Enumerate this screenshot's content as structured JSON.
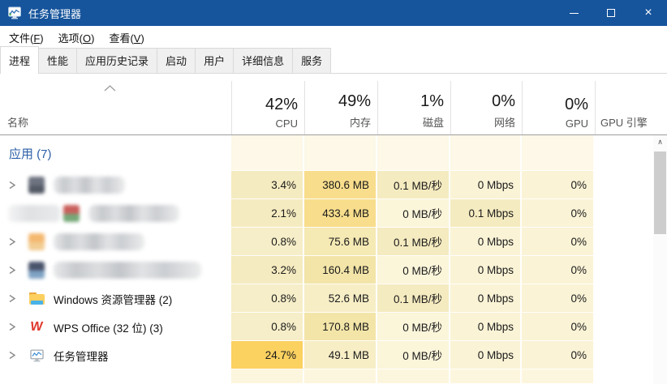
{
  "window": {
    "title": "任务管理器",
    "controls": {
      "close_glyph": "×"
    }
  },
  "menu": {
    "items": [
      {
        "pre": "文件(",
        "key": "F",
        "post": ")"
      },
      {
        "pre": "选项(",
        "key": "O",
        "post": ")"
      },
      {
        "pre": "查看(",
        "key": "V",
        "post": ")"
      }
    ]
  },
  "tabs": [
    {
      "label": "进程",
      "selected": true
    },
    {
      "label": "性能",
      "selected": false
    },
    {
      "label": "应用历史记录",
      "selected": false
    },
    {
      "label": "启动",
      "selected": false
    },
    {
      "label": "用户",
      "selected": false
    },
    {
      "label": "详细信息",
      "selected": false
    },
    {
      "label": "服务",
      "selected": false
    }
  ],
  "table": {
    "name_header": "名称",
    "columns": [
      {
        "value": "42%",
        "label": "CPU"
      },
      {
        "value": "49%",
        "label": "内存"
      },
      {
        "value": "1%",
        "label": "磁盘"
      },
      {
        "value": "0%",
        "label": "网络"
      },
      {
        "value": "0%",
        "label": "GPU"
      }
    ],
    "gpu_engine_header": "GPU 引擎",
    "group_label": "应用 (7)",
    "rows": [
      {
        "redacted": true,
        "name": "",
        "chevron": true,
        "icon": "redacted-app-icon",
        "icon_colors": [
          "#6e7380",
          "#545a66"
        ],
        "pre_blob": 0,
        "blur_width": 88,
        "cells": [
          {
            "t": "3.4%",
            "bg": "#f5ebc0"
          },
          {
            "t": "380.6 MB",
            "bg": "#f8dd8c"
          },
          {
            "t": "0.1 MB/秒",
            "bg": "#f5ebc0"
          },
          {
            "t": "0 Mbps",
            "bg": "#faf3d6"
          },
          {
            "t": "0%",
            "bg": "#faf3d6"
          }
        ]
      },
      {
        "redacted": true,
        "name": "",
        "chevron": false,
        "icon": "redacted-app-icon",
        "icon_colors": [
          "#c9605c",
          "#76a877"
        ],
        "pre_blob": 64,
        "blur_width": 112,
        "cells": [
          {
            "t": "2.1%",
            "bg": "#f5ebc0"
          },
          {
            "t": "433.4 MB",
            "bg": "#f8dd8c"
          },
          {
            "t": "0 MB/秒",
            "bg": "#fbf5da"
          },
          {
            "t": "0.1 Mbps",
            "bg": "#f5ebc0"
          },
          {
            "t": "0%",
            "bg": "#faf3d6"
          }
        ]
      },
      {
        "redacted": true,
        "name": "",
        "chevron": true,
        "icon": "redacted-app-icon",
        "icon_colors": [
          "#f4b870",
          "#f2cc92"
        ],
        "pre_blob": 0,
        "blur_width": 112,
        "cells": [
          {
            "t": "0.8%",
            "bg": "#f6eec8"
          },
          {
            "t": "75.6 MB",
            "bg": "#f5e9b4"
          },
          {
            "t": "0.1 MB/秒",
            "bg": "#f5ebc0"
          },
          {
            "t": "0 Mbps",
            "bg": "#faf3d6"
          },
          {
            "t": "0%",
            "bg": "#faf3d6"
          }
        ]
      },
      {
        "redacted": true,
        "name": "",
        "chevron": true,
        "icon": "redacted-app-icon",
        "icon_colors": [
          "#49536b",
          "#7fa3c4"
        ],
        "pre_blob": 0,
        "blur_width": 182,
        "cells": [
          {
            "t": "3.2%",
            "bg": "#f5ebc0"
          },
          {
            "t": "160.4 MB",
            "bg": "#f3e5a8"
          },
          {
            "t": "0 MB/秒",
            "bg": "#fbf5da"
          },
          {
            "t": "0 Mbps",
            "bg": "#faf3d6"
          },
          {
            "t": "0%",
            "bg": "#faf3d6"
          }
        ]
      },
      {
        "redacted": false,
        "name": "Windows 资源管理器 (2)",
        "chevron": true,
        "icon": "folder-icon",
        "cells": [
          {
            "t": "0.8%",
            "bg": "#f6eec8"
          },
          {
            "t": "52.6 MB",
            "bg": "#f7eec6"
          },
          {
            "t": "0.1 MB/秒",
            "bg": "#f5ebc0"
          },
          {
            "t": "0 Mbps",
            "bg": "#faf3d6"
          },
          {
            "t": "0%",
            "bg": "#faf3d6"
          }
        ]
      },
      {
        "redacted": false,
        "name": "WPS Office (32 位) (3)",
        "chevron": true,
        "icon": "wps-icon",
        "cells": [
          {
            "t": "0.8%",
            "bg": "#f6eec8"
          },
          {
            "t": "170.8 MB",
            "bg": "#f3e5a8"
          },
          {
            "t": "0 MB/秒",
            "bg": "#fbf5da"
          },
          {
            "t": "0 Mbps",
            "bg": "#faf3d6"
          },
          {
            "t": "0%",
            "bg": "#faf3d6"
          }
        ]
      },
      {
        "redacted": false,
        "name": "任务管理器",
        "chevron": true,
        "icon": "task-manager-icon",
        "cells": [
          {
            "t": "24.7%",
            "bg": "#fbd160"
          },
          {
            "t": "49.1 MB",
            "bg": "#f7eec6"
          },
          {
            "t": "0 MB/秒",
            "bg": "#fbf5da"
          },
          {
            "t": "0 Mbps",
            "bg": "#faf3d6"
          },
          {
            "t": "0%",
            "bg": "#faf3d6"
          }
        ]
      }
    ]
  },
  "scrollbar": {
    "up_arrow": "∧"
  },
  "colors": {
    "titlebar": "#16549c",
    "group_label": "#2b5fa7",
    "group_row_bg": "#fdf8e7",
    "filler_row_bg": "#fdf6de",
    "hot_cell": "#fbd160"
  }
}
